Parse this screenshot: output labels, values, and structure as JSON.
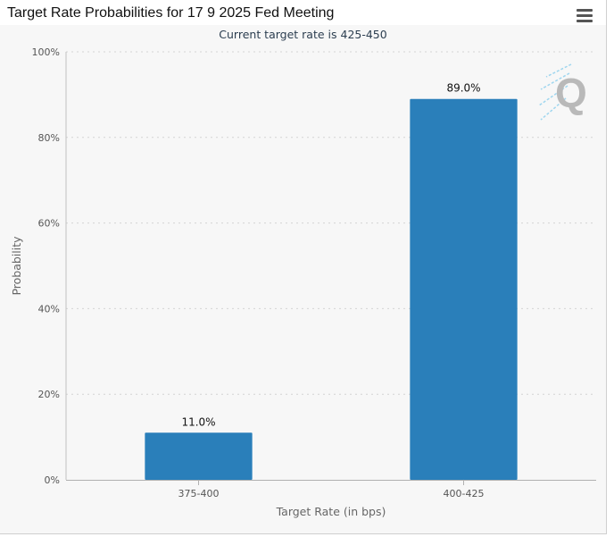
{
  "header": {
    "title": "Target Rate Probabilities for 17 9 2025 Fed Meeting",
    "menu_icon": "hamburger-menu-icon"
  },
  "colors": {
    "bar": "#2a7fba",
    "grid": "#d4d4d4",
    "axis_text": "#555555",
    "background": "#f7f7f7",
    "watermark": "#b9b9b9",
    "watermark_lines": "#9fd6ef"
  },
  "watermark": {
    "icon": "quikstrike-q-logo-icon",
    "text": "Q"
  },
  "chart_data": {
    "type": "bar",
    "title": "Target Rate Probabilities for 17 9 2025 Fed Meeting",
    "subtitle": "Current target rate is 425-450",
    "categories": [
      "375-400",
      "400-425"
    ],
    "values": [
      11.0,
      89.0
    ],
    "value_labels": [
      "11.0%",
      "89.0%"
    ],
    "xlabel": "Target Rate (in bps)",
    "ylabel": "Probability",
    "ylim": [
      0,
      100
    ],
    "yticks": [
      0,
      20,
      40,
      60,
      80,
      100
    ],
    "ytick_labels": [
      "0%",
      "20%",
      "40%",
      "60%",
      "80%",
      "100%"
    ],
    "grid": "horizontal dotted",
    "legend": "none"
  }
}
